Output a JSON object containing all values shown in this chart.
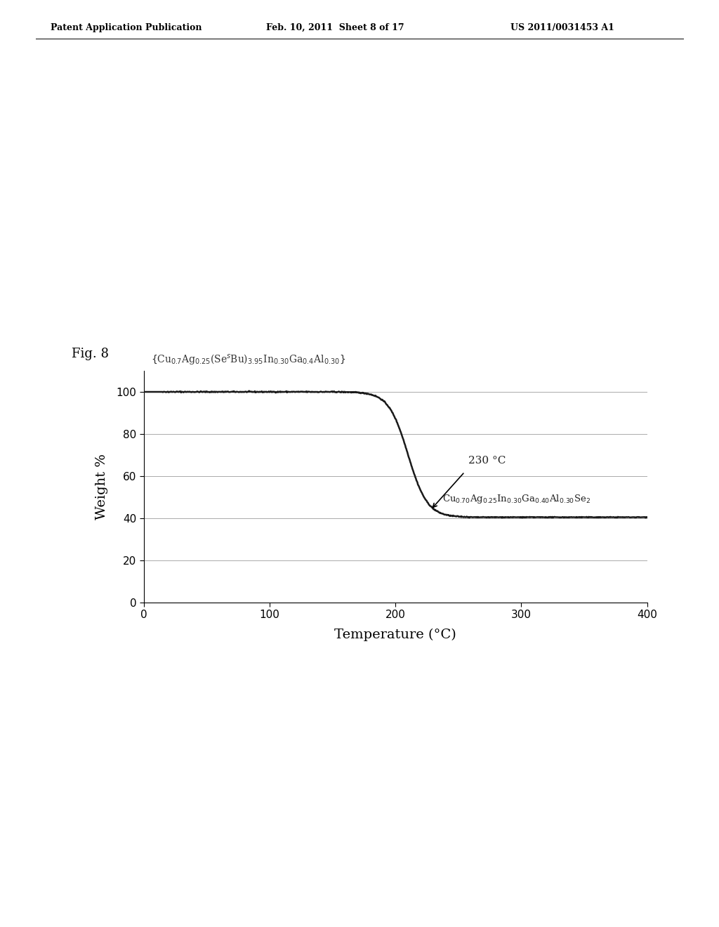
{
  "title_header_left": "Patent Application Publication",
  "title_header_mid": "Feb. 10, 2011  Sheet 8 of 17",
  "title_header_right": "US 2011/0031453 A1",
  "fig_label": "Fig. 8",
  "xlabel": "Temperature (°C)",
  "ylabel": "Weight %",
  "xlim": [
    0,
    400
  ],
  "ylim": [
    0,
    110
  ],
  "yticks": [
    0,
    20,
    40,
    60,
    80,
    100
  ],
  "xticks": [
    0,
    100,
    200,
    300,
    400
  ],
  "background_color": "#ffffff",
  "line_color": "#1a1a1a",
  "grid_color": "#aaaaaa",
  "header_fontsize": 9,
  "fig_label_fontsize": 13,
  "axis_label_fontsize": 14,
  "tick_fontsize": 11,
  "top_formula_fontsize": 10,
  "annot_fontsize": 11,
  "product_fontsize": 9.5
}
